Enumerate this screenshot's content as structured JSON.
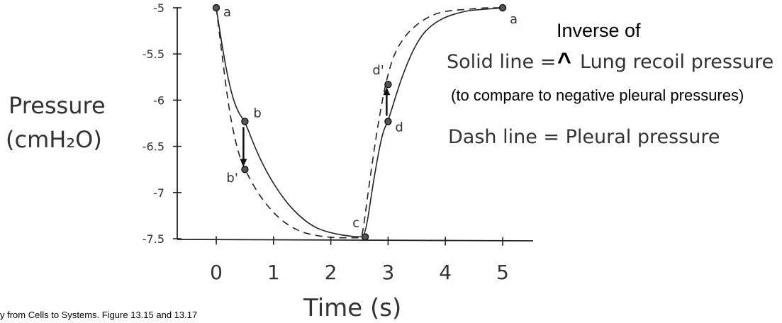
{
  "chart_data": {
    "type": "line",
    "title": "",
    "ylabel_line1": "Pressure",
    "ylabel_line2": "(cmH₂O)",
    "xlabel": "Time (s)",
    "x_ticks": [
      "0",
      "1",
      "2",
      "3",
      "4",
      "5"
    ],
    "y_ticks": [
      "-5",
      "-5.5",
      "-6",
      "-6.5",
      "-7",
      "-7.5"
    ],
    "xlim": [
      -0.7,
      5.6
    ],
    "ylim": [
      -7.5,
      -5
    ],
    "series": [
      {
        "name": "Solid line",
        "style": "solid",
        "x": [
          0,
          0.1,
          0.2,
          0.3,
          0.4,
          0.5,
          0.7,
          0.9,
          1.1,
          1.3,
          1.5,
          1.7,
          1.9,
          2.1,
          2.3,
          2.5,
          2.6,
          2.75,
          2.9,
          3.0,
          3.2,
          3.4,
          3.6,
          3.8,
          4.0,
          4.2,
          4.4,
          4.6,
          4.8,
          5.0
        ],
        "y": [
          -5,
          -5.4,
          -5.75,
          -6.0,
          -6.15,
          -6.23,
          -6.55,
          -6.8,
          -7.0,
          -7.16,
          -7.28,
          -7.37,
          -7.42,
          -7.45,
          -7.47,
          -7.48,
          -7.48,
          -6.85,
          -6.35,
          -6.23,
          -5.82,
          -5.5,
          -5.28,
          -5.17,
          -5.1,
          -5.06,
          -5.03,
          -5.02,
          -5.01,
          -5.0
        ]
      },
      {
        "name": "Dash line",
        "style": "dashed",
        "x": [
          0,
          0.1,
          0.2,
          0.3,
          0.4,
          0.5,
          0.7,
          0.9,
          1.1,
          1.3,
          1.5,
          1.7,
          1.9,
          2.1,
          2.3,
          2.5,
          2.55,
          2.65,
          2.8,
          2.95,
          3.1,
          3.3,
          3.5,
          3.7,
          3.9,
          4.1,
          4.3,
          4.5,
          4.7,
          5.0
        ],
        "y": [
          -5,
          -5.5,
          -6.0,
          -6.35,
          -6.6,
          -6.75,
          -6.98,
          -7.15,
          -7.28,
          -7.37,
          -7.43,
          -7.46,
          -7.48,
          -7.49,
          -7.49,
          -7.49,
          -7.48,
          -7.0,
          -6.35,
          -5.83,
          -5.5,
          -5.3,
          -5.18,
          -5.1,
          -5.05,
          -5.03,
          -5.02,
          -5.01,
          -5.0,
          -5.0
        ]
      }
    ],
    "points": [
      {
        "label": "a",
        "x": 0,
        "y": -5
      },
      {
        "label": "b",
        "x": 0.5,
        "y": -6.23
      },
      {
        "label": "b'",
        "x": 0.5,
        "y": -6.75
      },
      {
        "label": "c",
        "x": 2.6,
        "y": -7.48
      },
      {
        "label": "d",
        "x": 3.0,
        "y": -6.23
      },
      {
        "label": "d'",
        "x": 3.0,
        "y": -5.83
      },
      {
        "label": "a",
        "x": 5.0,
        "y": -5.0
      }
    ],
    "arrows": [
      {
        "from": "b",
        "to": "b'",
        "x": 0.5,
        "y_from": -6.23,
        "y_to": -6.75
      },
      {
        "from": "d",
        "to": "d'",
        "x": 3.0,
        "y_from": -6.23,
        "y_to": -5.83
      }
    ],
    "legend": {
      "solid_label": "Solid line = ",
      "solid_desc": "Lung recoil pressure",
      "inverse_of": "Inverse of",
      "caret": "^",
      "note": "(to compare to negative pleural pressures)",
      "dash_label": "Dash line = Pleural pressure",
      "placement": "right"
    }
  },
  "caption": "y from Cells to Systems. Figure 13.15 and 13.17"
}
